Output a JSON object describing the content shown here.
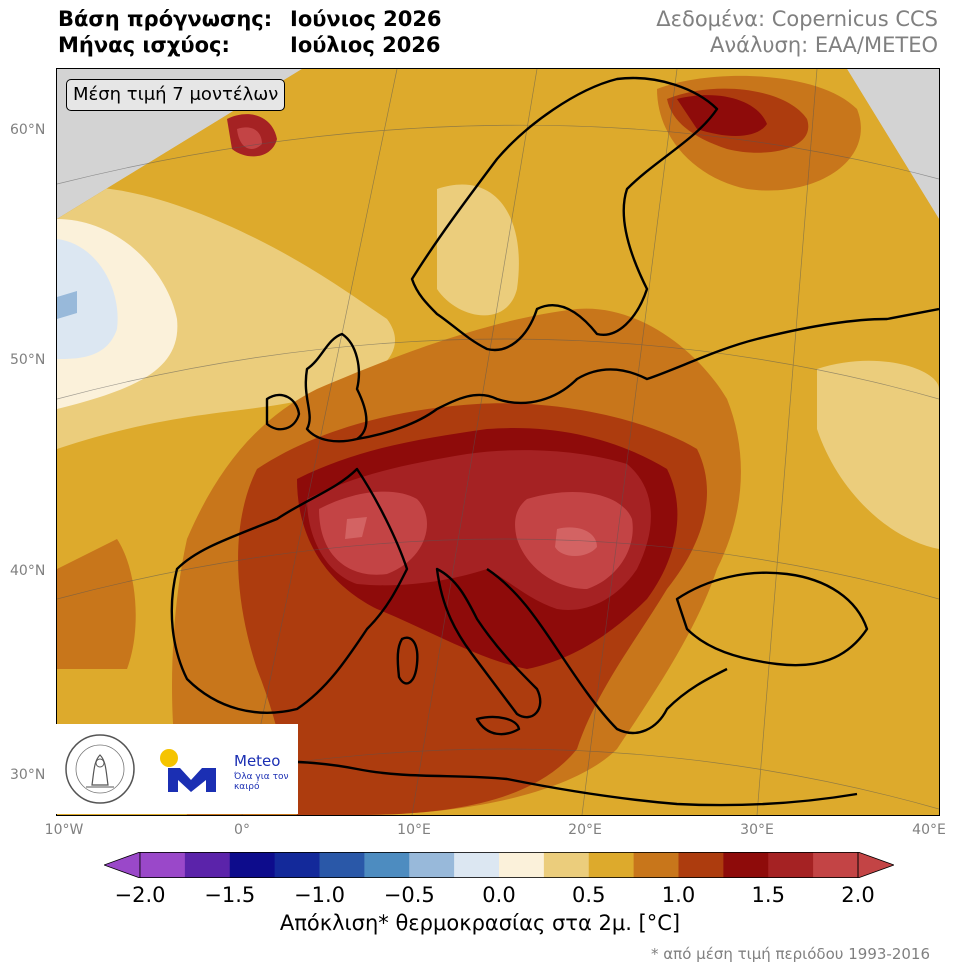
{
  "header": {
    "forecast_base_label": "Βάση πρόγνωσης:",
    "forecast_base_value": "Ιούνιος 2026",
    "valid_month_label": "Μήνας ισχύος:",
    "valid_month_value": "Ιούλιος 2026",
    "data_source": "Δεδομένα: Copernicus CCS",
    "analysis": "Ανάλυση: ΕΑΑ/METEO"
  },
  "map": {
    "ensemble_label": "Μέση τιμή 7 μοντέλων",
    "latitude_labels": [
      "60°N",
      "50°N",
      "40°N",
      "30°N"
    ],
    "longitude_labels": [
      "10°W",
      "0°",
      "10°E",
      "20°E",
      "30°E",
      "40°E"
    ],
    "no_data_color": "#d3d3d3",
    "coastline_color": "#000000"
  },
  "logos": {
    "observatory_seal": "ΕΘΝΙΚΟ ΑΣΤΕΡΟΣΚΟΠΕΙΟ ΑΘΗΝΩΝ · NATIONAL OBSERVATORY OF ATHENS",
    "meteo_name": "Meteo",
    "meteo_tagline": "Όλα για τον καιρό",
    "meteo_blue": "#1b2fb3",
    "meteo_yellow": "#f5c400"
  },
  "colorbar": {
    "tick_labels": [
      "−2.0",
      "−1.5",
      "−1.0",
      "−0.5",
      "0.0",
      "0.5",
      "1.0",
      "1.5",
      "2.0"
    ],
    "title": "Απόκλιση* θερμοκρασίας στα 2μ. [°C]",
    "footnote": "* από μέση τιμή περιόδου 1993-2016",
    "colors": [
      "#9a48c9",
      "#5b23aa",
      "#0d0c8c",
      "#13299a",
      "#2a58a8",
      "#4d8cc0",
      "#98b9da",
      "#dce7f2",
      "#fbf1da",
      "#ebcd7c",
      "#ddaa2c",
      "#c8761b",
      "#ad3c0e",
      "#8e0b0a",
      "#a52223",
      "#c34445"
    ]
  },
  "anomaly_fields": [
    {
      "name": "above-0-0",
      "value": 0.0
    },
    {
      "name": "above-0-25",
      "value": 0.25
    },
    {
      "name": "above-0-5",
      "value": 0.5
    },
    {
      "name": "above-0-75",
      "value": 0.75
    },
    {
      "name": "above-1-0",
      "value": 1.0
    },
    {
      "name": "above-1-25",
      "value": 1.25
    },
    {
      "name": "above-1-5",
      "value": 1.5
    },
    {
      "name": "above-1-75",
      "value": 1.75
    }
  ]
}
